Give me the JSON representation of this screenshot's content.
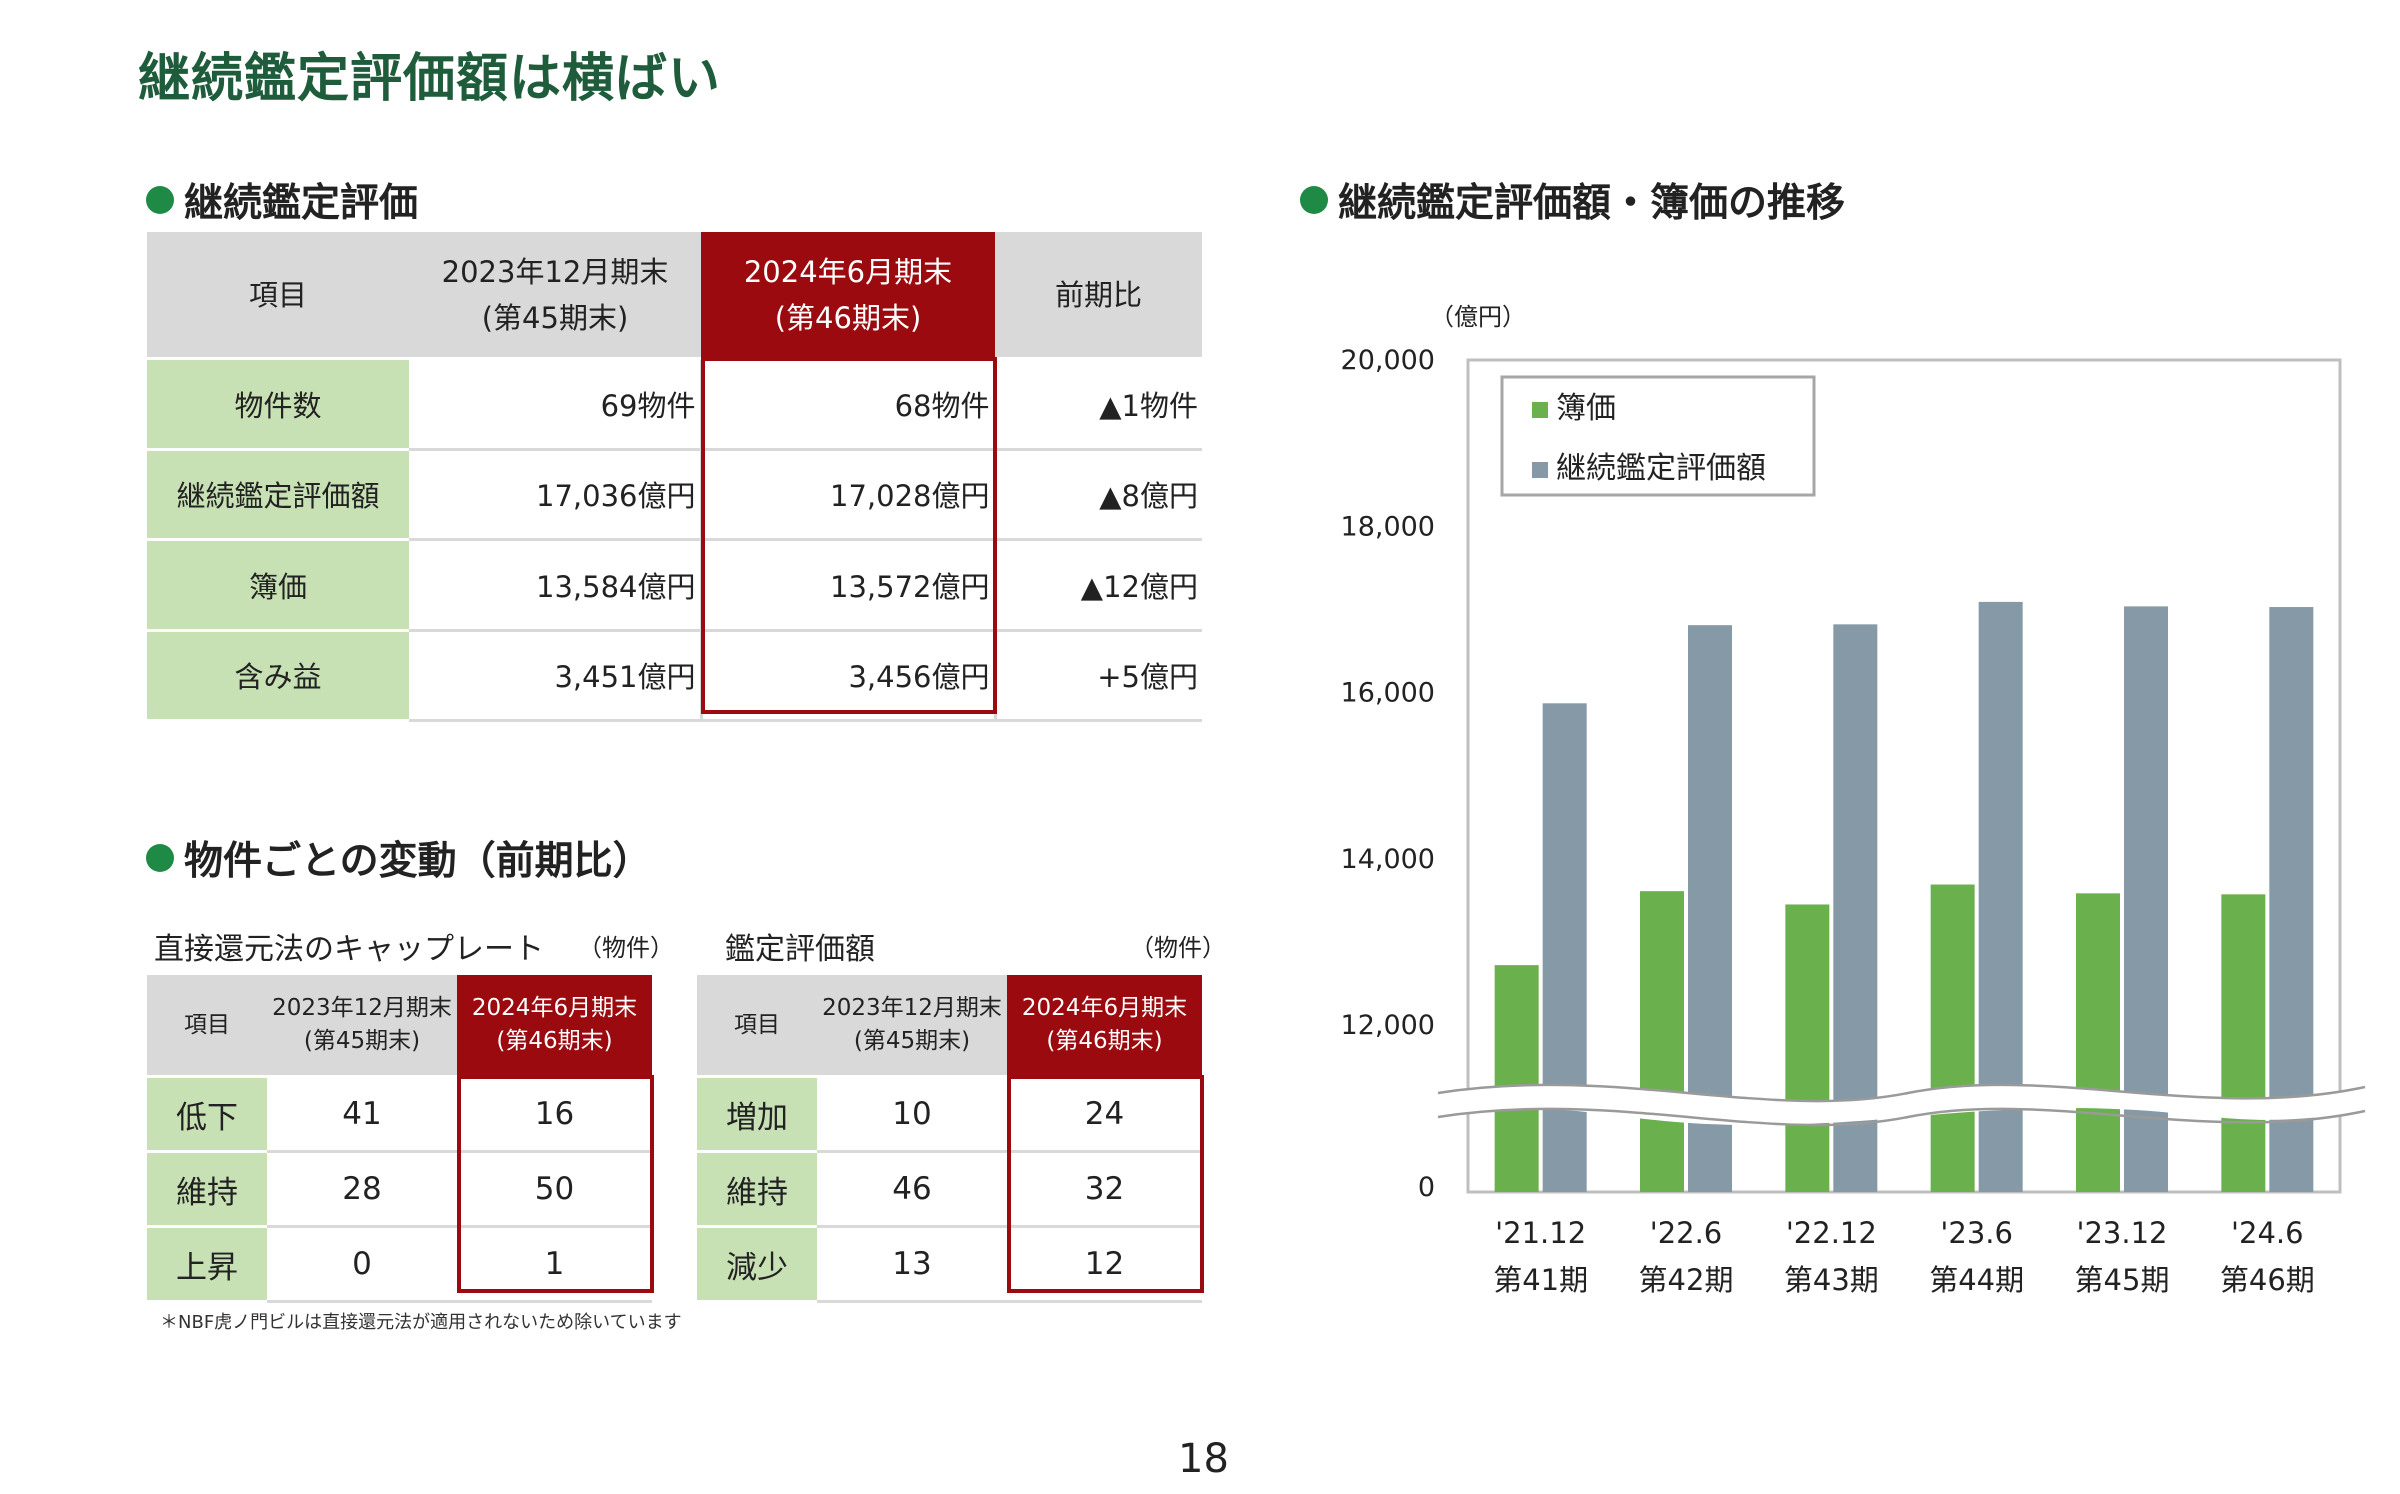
{
  "title": "継続鑑定評価額は横ばい",
  "section1": {
    "heading": "継続鑑定評価",
    "headers": [
      "項目",
      "2023年12月期末",
      "(第45期末)",
      "2024年6月期末",
      "(第46期末)",
      "前期比"
    ],
    "rows": [
      {
        "label": "物件数",
        "prev": "69物件",
        "curr": "68物件",
        "diff": "▲1物件"
      },
      {
        "label": "継続鑑定評価額",
        "prev": "17,036億円",
        "curr": "17,028億円",
        "diff": "▲8億円"
      },
      {
        "label": "簿価",
        "prev": "13,584億円",
        "curr": "13,572億円",
        "diff": "▲12億円"
      },
      {
        "label": "含み益",
        "prev": "3,451億円",
        "curr": "3,456億円",
        "diff": "+5億円"
      }
    ]
  },
  "section2": {
    "heading": "物件ごとの変動（前期比）",
    "left": {
      "caption": "直接還元法のキャップレート",
      "unit": "（物件）",
      "headers": [
        "項目",
        "2023年12月期末",
        "(第45期末)",
        "2024年6月期末",
        "(第46期末)"
      ],
      "rows": [
        {
          "label": "低下",
          "prev": "41",
          "curr": "16"
        },
        {
          "label": "維持",
          "prev": "28",
          "curr": "50"
        },
        {
          "label": "上昇",
          "prev": "0",
          "curr": "1"
        }
      ]
    },
    "right": {
      "caption": "鑑定評価額",
      "unit": "（物件）",
      "headers": [
        "項目",
        "2023年12月期末",
        "(第45期末)",
        "2024年6月期末",
        "(第46期末)"
      ],
      "rows": [
        {
          "label": "増加",
          "prev": "10",
          "curr": "24"
        },
        {
          "label": "維持",
          "prev": "46",
          "curr": "32"
        },
        {
          "label": "減少",
          "prev": "13",
          "curr": "12"
        }
      ]
    },
    "note": "＊NBF虎ノ門ビルは直接還元法が適用されないため除いています"
  },
  "chart_heading": "継続鑑定評価額・簿価の推移",
  "chart_data": {
    "type": "bar",
    "unit_label": "（億円）",
    "categories": [
      "'21.12",
      "'22.6",
      "'22.12",
      "'23.6",
      "'23.12",
      "'24.6"
    ],
    "sublabels": [
      "第41期",
      "第42期",
      "第43期",
      "第44期",
      "第45期",
      "第46期"
    ],
    "series": [
      {
        "name": "簿価",
        "color": "#6ab04c",
        "values": [
          12720,
          13610,
          13450,
          13690,
          13584,
          13572
        ]
      },
      {
        "name": "継続鑑定評価額",
        "color": "#8599a6",
        "values": [
          15870,
          16810,
          16820,
          17090,
          17036,
          17028
        ]
      }
    ],
    "yticks": [
      "20,000",
      "18,000",
      "16,000",
      "14,000",
      "12,000",
      "0"
    ],
    "yrange_upper": [
      11000,
      20000
    ],
    "axis_break": true,
    "legend_position": "top-left"
  },
  "page_number": "18"
}
